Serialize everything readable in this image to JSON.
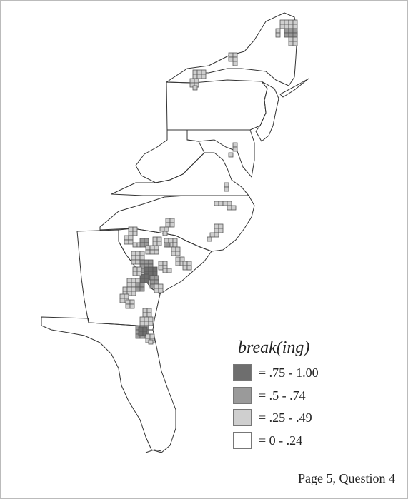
{
  "legend": {
    "title": "break(ing)",
    "items": [
      {
        "label": "=  .75 - 1.00",
        "color": "#6e6e6e",
        "pattern": "dark"
      },
      {
        "label": "=  .5 - .74",
        "color": "#9a9a9a",
        "pattern": "medium"
      },
      {
        "label": "=  .25 - .49",
        "color": "#cfcfcf",
        "pattern": "light"
      },
      {
        "label": "=   0 - .24",
        "color": "#ffffff",
        "pattern": "none"
      }
    ]
  },
  "footer": "Page 5, Question 4",
  "colors": {
    "outline": "#333333",
    "cell_border": "#555555"
  }
}
